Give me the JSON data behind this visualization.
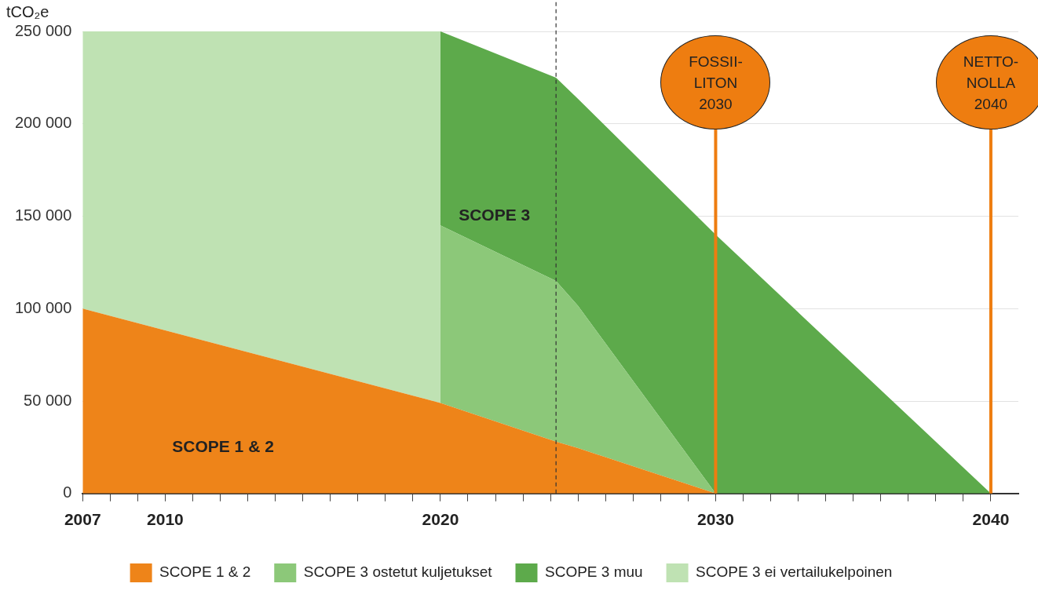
{
  "chart_data": {
    "type": "area",
    "stacked": true,
    "ylabel": "tCO₂e",
    "x": [
      2007,
      2020,
      2020,
      2024.2,
      2025,
      2030,
      2040
    ],
    "series": [
      {
        "name": "SCOPE 1 & 2",
        "color": "#ee8419",
        "values": [
          100000,
          49000,
          49000,
          28000,
          24500,
          0,
          0
        ]
      },
      {
        "name": "SCOPE 3 ostetut kuljetukset",
        "color": "#8cc879",
        "values": [
          0,
          0,
          96000,
          87000,
          77000,
          0,
          0
        ]
      },
      {
        "name": "SCOPE 3 muu",
        "color": "#5daa4b",
        "values": [
          0,
          0,
          105000,
          110000,
          112000,
          140000,
          0
        ]
      },
      {
        "name": "SCOPE 3 ei vertailukelpoinen",
        "color": "#bfe2b3",
        "values": [
          150000,
          201000,
          null,
          null,
          null,
          null,
          null
        ]
      }
    ],
    "xlim": [
      2007,
      2041
    ],
    "xticks": [
      2007,
      2010,
      {
        "value": 2008,
        "label": null
      },
      {
        "value": 2009,
        "label": null
      },
      {
        "value": 2011,
        "label": null
      },
      {
        "value": 2012,
        "label": null
      },
      {
        "value": 2013,
        "label": null
      },
      {
        "value": 2014,
        "label": null
      },
      {
        "value": 2015,
        "label": null
      },
      {
        "value": 2016,
        "label": null
      },
      {
        "value": 2017,
        "label": null
      },
      {
        "value": 2018,
        "label": null
      },
      {
        "value": 2019,
        "label": null
      },
      2020,
      {
        "value": 2021,
        "label": null
      },
      {
        "value": 2022,
        "label": null
      },
      {
        "value": 2023,
        "label": null
      },
      {
        "value": 2024,
        "label": null
      },
      {
        "value": 2025,
        "label": null
      },
      {
        "value": 2026,
        "label": null
      },
      {
        "value": 2027,
        "label": null
      },
      {
        "value": 2028,
        "label": null
      },
      {
        "value": 2029,
        "label": null
      },
      2030,
      {
        "value": 2031,
        "label": null
      },
      {
        "value": 2032,
        "label": null
      },
      {
        "value": 2033,
        "label": null
      },
      {
        "value": 2034,
        "label": null
      },
      {
        "value": 2035,
        "label": null
      },
      {
        "value": 2036,
        "label": null
      },
      {
        "value": 2037,
        "label": null
      },
      {
        "value": 2038,
        "label": null
      },
      {
        "value": 2039,
        "label": null
      },
      2040
    ],
    "ylim": [
      0,
      250000
    ],
    "yticks": [
      0,
      {
        "value": 50000,
        "label": "50 000"
      },
      {
        "value": 100000,
        "label": "100 000"
      },
      {
        "value": 150000,
        "label": "150 000"
      },
      {
        "value": 200000,
        "label": "200 000"
      },
      {
        "value": 250000,
        "label": "250 000"
      }
    ],
    "grid": "y",
    "legend": "bottom",
    "marker": "none",
    "ref_lines": [
      {
        "axis": "x",
        "value": 2024.2,
        "label": null,
        "color": "#333333",
        "line_style": "dashed"
      },
      {
        "axis": "x",
        "value": 2030,
        "label": "FOSSII-\nLITON\n2030",
        "color": "#ee7d10",
        "line_style": "solid"
      },
      {
        "axis": "x",
        "value": 2040,
        "label": "NETTO-\nNOLLA\n2040",
        "color": "#ee7d10",
        "line_style": "solid"
      }
    ],
    "annotations": [
      "SCOPE 3",
      "SCOPE 1 & 2"
    ]
  }
}
